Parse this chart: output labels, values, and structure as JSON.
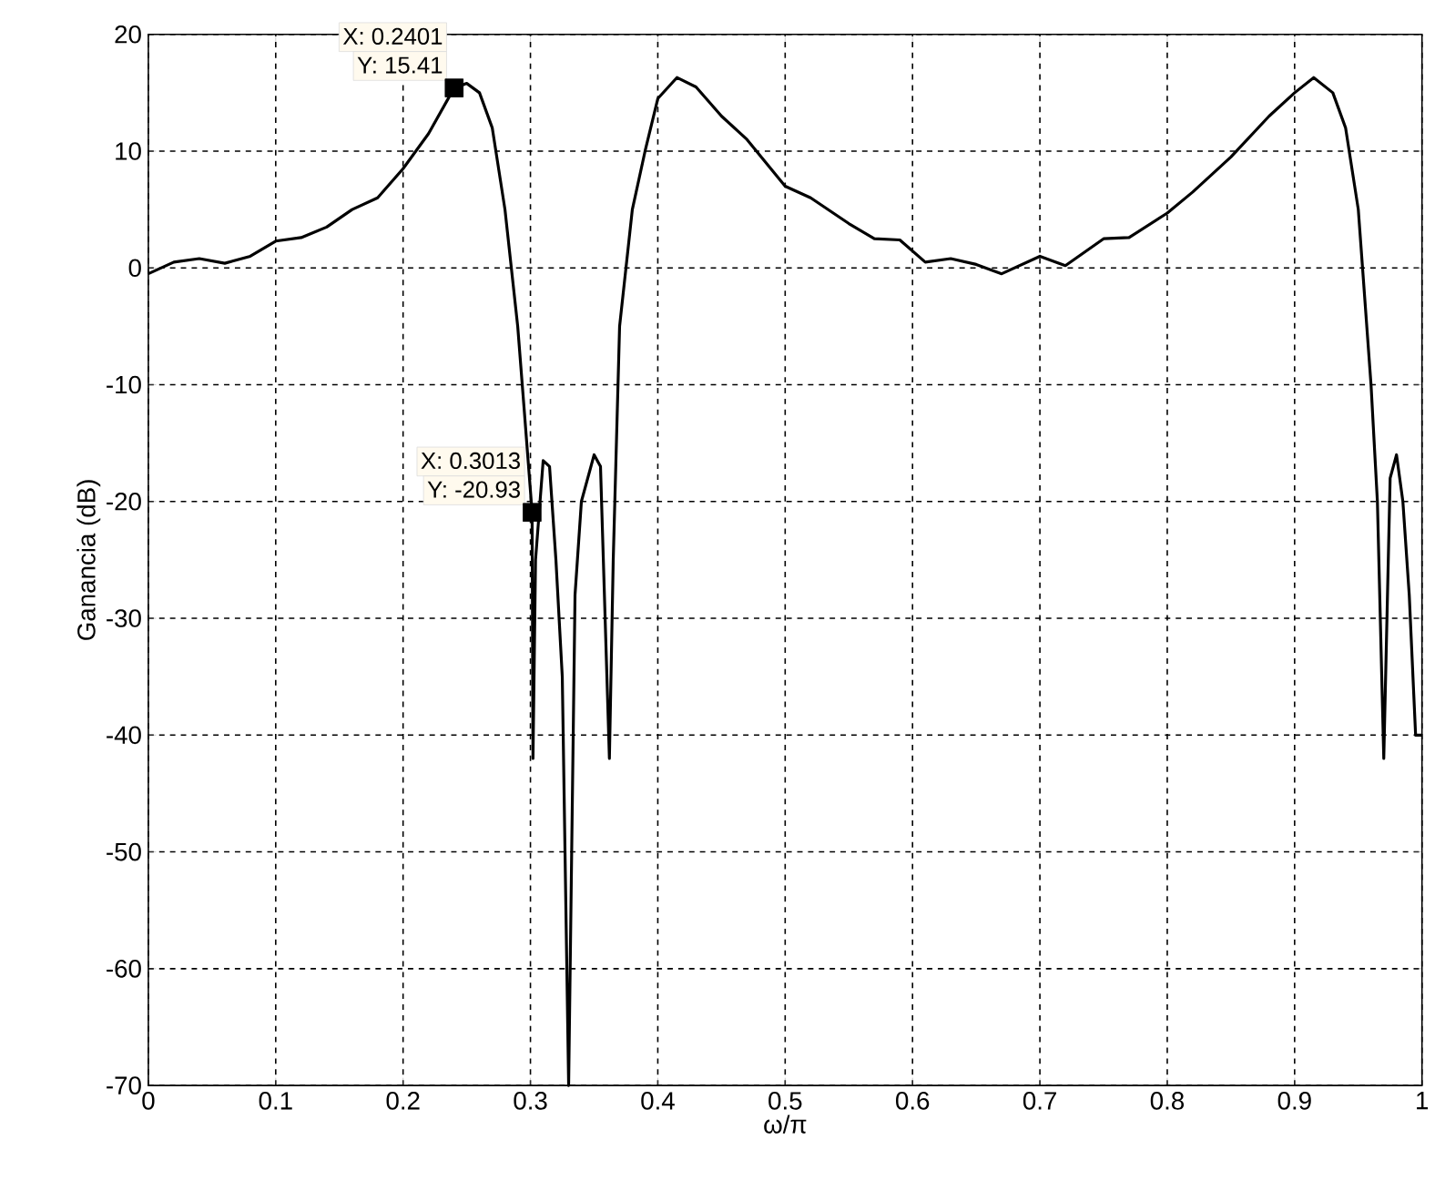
{
  "chart_data": {
    "type": "line",
    "xlabel": "ω/π",
    "ylabel": "Ganancia (dB)",
    "x": [
      0,
      0.02,
      0.04,
      0.06,
      0.08,
      0.1,
      0.12,
      0.14,
      0.16,
      0.18,
      0.2,
      0.22,
      0.2401,
      0.25,
      0.26,
      0.27,
      0.28,
      0.29,
      0.295,
      0.3013,
      0.302,
      0.304,
      0.31,
      0.315,
      0.32,
      0.325,
      0.33,
      0.335,
      0.34,
      0.35,
      0.355,
      0.362,
      0.365,
      0.37,
      0.38,
      0.39,
      0.4,
      0.415,
      0.43,
      0.45,
      0.47,
      0.5,
      0.52,
      0.55,
      0.57,
      0.59,
      0.61,
      0.63,
      0.65,
      0.67,
      0.7,
      0.72,
      0.75,
      0.77,
      0.8,
      0.82,
      0.85,
      0.88,
      0.9,
      0.915,
      0.93,
      0.94,
      0.95,
      0.96,
      0.965,
      0.97,
      0.975,
      0.98,
      0.985,
      0.99,
      0.995,
      1.0
    ],
    "series": [
      {
        "color": "#000000",
        "values": [
          -0.5,
          0.5,
          0.8,
          0.4,
          1.0,
          2.3,
          2.6,
          3.5,
          5,
          6,
          8.5,
          11.5,
          15.41,
          15.8,
          15,
          12,
          5,
          -5,
          -12,
          -20.93,
          -42,
          -25,
          -16.5,
          -17,
          -25,
          -35,
          -70,
          -28,
          -20,
          -16,
          -17,
          -42,
          -25,
          -5,
          5,
          10,
          14.5,
          16.3,
          15.5,
          13,
          11,
          7,
          6,
          3.8,
          2.5,
          2.4,
          0.5,
          0.8,
          0.3,
          -0.5,
          1.0,
          0.2,
          2.5,
          2.6,
          4.7,
          6.5,
          9.5,
          13,
          15,
          16.3,
          15,
          12,
          5,
          -10,
          -20,
          -42,
          -18,
          -16,
          -20,
          -28,
          -40,
          -40
        ]
      },
      {
        "type": "scatter",
        "color": "#000000",
        "x": [
          0.2401,
          0.3013
        ],
        "values": [
          15.41,
          -20.93
        ]
      }
    ],
    "xlim": [
      0,
      1
    ],
    "ylim": [
      -70,
      20
    ],
    "xticks": [
      0,
      0.1,
      0.2,
      0.3,
      0.4,
      0.5,
      0.6,
      0.7,
      0.8,
      0.9,
      1
    ],
    "yticks": [
      -70,
      -60,
      -50,
      -40,
      -30,
      -20,
      -10,
      0,
      10,
      20
    ],
    "grid": true,
    "line_style": "solid",
    "annotations": [
      "X: 0.2401",
      "Y: 15.41",
      "X: 0.3013",
      "Y: -20.93"
    ]
  }
}
